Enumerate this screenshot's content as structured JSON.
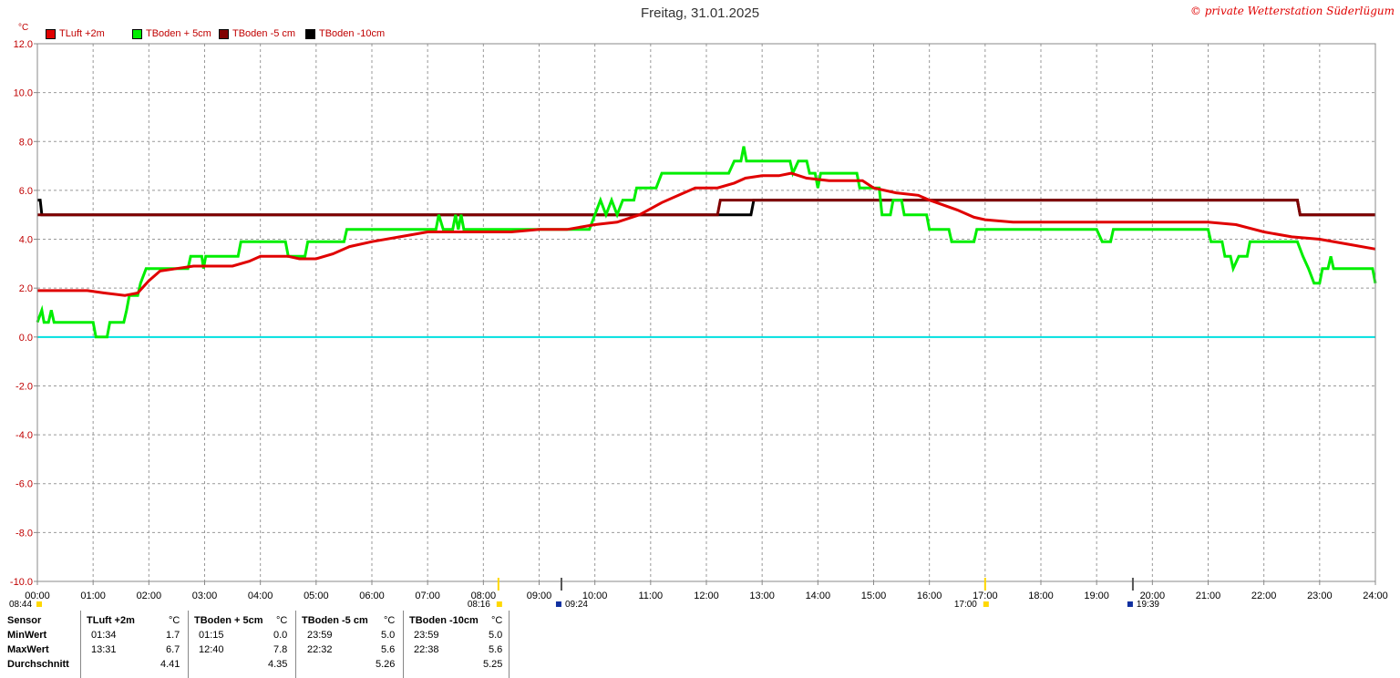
{
  "header": {
    "title": "Freitag, 31.01.2025",
    "copyright": "© private Wetterstation Süderlügum",
    "unit": "°C"
  },
  "colors": {
    "tluft": "#e00000",
    "tboden5": "#00ee00",
    "tboden_5": "#800000",
    "tboden_10": "#000000",
    "zero": "#00e0e0"
  },
  "chart_data": {
    "type": "line",
    "title": "Freitag, 31.01.2025",
    "ylabel": "°C",
    "ylim": [
      -10,
      12
    ],
    "xlim": [
      0,
      24
    ],
    "grid": true,
    "yticks": [
      "12.0",
      "10.0",
      "8.0",
      "6.0",
      "4.0",
      "2.0",
      "0.0",
      "-2.0",
      "-4.0",
      "-6.0",
      "-8.0",
      "-10.0"
    ],
    "xticks": [
      "00:00",
      "01:00",
      "02:00",
      "03:00",
      "04:00",
      "05:00",
      "06:00",
      "07:00",
      "08:00",
      "09:00",
      "10:00",
      "11:00",
      "12:00",
      "13:00",
      "14:00",
      "15:00",
      "16:00",
      "17:00",
      "18:00",
      "19:00",
      "20:00",
      "21:00",
      "22:00",
      "23:00",
      "24:00"
    ],
    "legend_position": "top-left",
    "series": [
      {
        "name": "TLuft +2m",
        "color": "#e00000",
        "points": [
          [
            0,
            1.9
          ],
          [
            0.5,
            1.9
          ],
          [
            0.9,
            1.9
          ],
          [
            1.2,
            1.8
          ],
          [
            1.57,
            1.7
          ],
          [
            1.8,
            1.8
          ],
          [
            2.0,
            2.3
          ],
          [
            2.2,
            2.7
          ],
          [
            2.5,
            2.8
          ],
          [
            2.8,
            2.9
          ],
          [
            3.2,
            2.9
          ],
          [
            3.5,
            2.9
          ],
          [
            3.8,
            3.1
          ],
          [
            4.0,
            3.3
          ],
          [
            4.5,
            3.3
          ],
          [
            4.7,
            3.2
          ],
          [
            5.0,
            3.2
          ],
          [
            5.3,
            3.4
          ],
          [
            5.6,
            3.7
          ],
          [
            6.0,
            3.9
          ],
          [
            6.5,
            4.1
          ],
          [
            7.0,
            4.3
          ],
          [
            7.5,
            4.3
          ],
          [
            8.0,
            4.3
          ],
          [
            8.5,
            4.3
          ],
          [
            9.0,
            4.4
          ],
          [
            9.5,
            4.4
          ],
          [
            10.0,
            4.6
          ],
          [
            10.4,
            4.7
          ],
          [
            10.8,
            5.0
          ],
          [
            11.2,
            5.5
          ],
          [
            11.5,
            5.8
          ],
          [
            11.8,
            6.1
          ],
          [
            12.2,
            6.1
          ],
          [
            12.5,
            6.3
          ],
          [
            12.7,
            6.5
          ],
          [
            13.0,
            6.6
          ],
          [
            13.3,
            6.6
          ],
          [
            13.52,
            6.7
          ],
          [
            13.8,
            6.5
          ],
          [
            14.2,
            6.4
          ],
          [
            14.5,
            6.4
          ],
          [
            14.8,
            6.4
          ],
          [
            15.0,
            6.1
          ],
          [
            15.4,
            5.9
          ],
          [
            15.8,
            5.8
          ],
          [
            16.0,
            5.6
          ],
          [
            16.5,
            5.2
          ],
          [
            16.8,
            4.9
          ],
          [
            17.0,
            4.8
          ],
          [
            17.5,
            4.7
          ],
          [
            18.0,
            4.7
          ],
          [
            18.5,
            4.7
          ],
          [
            19.0,
            4.7
          ],
          [
            19.5,
            4.7
          ],
          [
            20.0,
            4.7
          ],
          [
            20.5,
            4.7
          ],
          [
            21.0,
            4.7
          ],
          [
            21.5,
            4.6
          ],
          [
            22.0,
            4.3
          ],
          [
            22.5,
            4.1
          ],
          [
            23.0,
            4.0
          ],
          [
            23.5,
            3.8
          ],
          [
            24.0,
            3.6
          ]
        ]
      },
      {
        "name": "TBoden + 5cm",
        "color": "#00ee00",
        "points": [
          [
            0,
            0.6
          ],
          [
            0.08,
            1.1
          ],
          [
            0.12,
            0.6
          ],
          [
            0.2,
            0.6
          ],
          [
            0.25,
            1.1
          ],
          [
            0.3,
            0.6
          ],
          [
            0.5,
            0.6
          ],
          [
            1.0,
            0.6
          ],
          [
            1.05,
            0.0
          ],
          [
            1.25,
            0.0
          ],
          [
            1.3,
            0.6
          ],
          [
            1.55,
            0.6
          ],
          [
            1.6,
            1.1
          ],
          [
            1.65,
            1.7
          ],
          [
            1.8,
            1.7
          ],
          [
            1.85,
            2.2
          ],
          [
            1.95,
            2.8
          ],
          [
            2.5,
            2.8
          ],
          [
            2.7,
            2.8
          ],
          [
            2.75,
            3.3
          ],
          [
            2.95,
            3.3
          ],
          [
            2.98,
            2.8
          ],
          [
            3.02,
            3.3
          ],
          [
            3.6,
            3.3
          ],
          [
            3.65,
            3.9
          ],
          [
            4.45,
            3.9
          ],
          [
            4.5,
            3.3
          ],
          [
            4.8,
            3.3
          ],
          [
            4.85,
            3.9
          ],
          [
            5.5,
            3.9
          ],
          [
            5.55,
            4.4
          ],
          [
            7.15,
            4.4
          ],
          [
            7.2,
            5.0
          ],
          [
            7.28,
            4.4
          ],
          [
            7.45,
            4.4
          ],
          [
            7.5,
            5.0
          ],
          [
            7.55,
            4.4
          ],
          [
            7.6,
            5.0
          ],
          [
            7.65,
            4.4
          ],
          [
            8.0,
            4.4
          ],
          [
            9.0,
            4.4
          ],
          [
            9.9,
            4.4
          ],
          [
            10.0,
            5.0
          ],
          [
            10.1,
            5.6
          ],
          [
            10.2,
            5.0
          ],
          [
            10.3,
            5.6
          ],
          [
            10.4,
            5.0
          ],
          [
            10.5,
            5.6
          ],
          [
            10.7,
            5.6
          ],
          [
            10.75,
            6.1
          ],
          [
            11.1,
            6.1
          ],
          [
            11.2,
            6.7
          ],
          [
            12.4,
            6.7
          ],
          [
            12.5,
            7.2
          ],
          [
            12.62,
            7.2
          ],
          [
            12.67,
            7.8
          ],
          [
            12.72,
            7.2
          ],
          [
            13.5,
            7.2
          ],
          [
            13.55,
            6.7
          ],
          [
            13.65,
            7.2
          ],
          [
            13.8,
            7.2
          ],
          [
            13.85,
            6.7
          ],
          [
            13.95,
            6.7
          ],
          [
            14.0,
            6.1
          ],
          [
            14.05,
            6.7
          ],
          [
            14.7,
            6.7
          ],
          [
            14.75,
            6.1
          ],
          [
            15.1,
            6.1
          ],
          [
            15.15,
            5.0
          ],
          [
            15.3,
            5.0
          ],
          [
            15.35,
            5.6
          ],
          [
            15.5,
            5.6
          ],
          [
            15.55,
            5.0
          ],
          [
            15.95,
            5.0
          ],
          [
            16.0,
            4.4
          ],
          [
            16.35,
            4.4
          ],
          [
            16.4,
            3.9
          ],
          [
            16.8,
            3.9
          ],
          [
            16.85,
            4.4
          ],
          [
            19.0,
            4.4
          ],
          [
            19.1,
            3.9
          ],
          [
            19.25,
            3.9
          ],
          [
            19.3,
            4.4
          ],
          [
            21.0,
            4.4
          ],
          [
            21.05,
            3.9
          ],
          [
            21.25,
            3.9
          ],
          [
            21.3,
            3.3
          ],
          [
            21.4,
            3.3
          ],
          [
            21.45,
            2.8
          ],
          [
            21.55,
            3.3
          ],
          [
            21.7,
            3.3
          ],
          [
            21.75,
            3.9
          ],
          [
            22.6,
            3.9
          ],
          [
            22.7,
            3.3
          ],
          [
            22.8,
            2.8
          ],
          [
            22.9,
            2.2
          ],
          [
            23.0,
            2.2
          ],
          [
            23.05,
            2.8
          ],
          [
            23.15,
            2.8
          ],
          [
            23.2,
            3.3
          ],
          [
            23.25,
            2.8
          ],
          [
            23.95,
            2.8
          ],
          [
            24.0,
            2.2
          ]
        ]
      },
      {
        "name": "TBoden -5 cm",
        "color": "#800000",
        "points": [
          [
            0,
            5.0
          ],
          [
            12.2,
            5.0
          ],
          [
            12.25,
            5.6
          ],
          [
            12.8,
            5.6
          ],
          [
            12.85,
            5.6
          ],
          [
            22.6,
            5.6
          ],
          [
            22.65,
            5.0
          ],
          [
            24.0,
            5.0
          ]
        ]
      },
      {
        "name": "TBoden -10cm",
        "color": "#000000",
        "points": [
          [
            0,
            5.6
          ],
          [
            0.05,
            5.6
          ],
          [
            0.08,
            5.0
          ],
          [
            12.8,
            5.0
          ],
          [
            12.85,
            5.6
          ],
          [
            22.6,
            5.6
          ],
          [
            22.65,
            5.0
          ],
          [
            24.0,
            5.0
          ]
        ]
      }
    ],
    "sun_markers": [
      {
        "label": "08:44",
        "time": 0
      },
      {
        "label": "08:16",
        "time": 8.27
      },
      {
        "label": "09:24",
        "time": 9.4
      },
      {
        "label": "17:00",
        "time": 17.0
      },
      {
        "label": "19:39",
        "time": 19.65
      }
    ]
  },
  "stats": {
    "headers": [
      "Sensor",
      "TLuft +2m",
      "°C",
      "TBoden + 5cm",
      "°C",
      "TBoden -5 cm",
      "°C",
      "TBoden -10cm",
      "°C"
    ],
    "rows": [
      {
        "label": "MinWert",
        "values": [
          "01:34",
          "1.7",
          "01:15",
          "0.0",
          "23:59",
          "5.0",
          "23:59",
          "5.0"
        ]
      },
      {
        "label": "MaxWert",
        "values": [
          "13:31",
          "6.7",
          "12:40",
          "7.8",
          "22:32",
          "5.6",
          "22:38",
          "5.6"
        ]
      },
      {
        "label": "Durchschnitt",
        "values": [
          "",
          "4.41",
          "",
          "4.35",
          "",
          "5.26",
          "",
          "5.25"
        ]
      }
    ]
  }
}
